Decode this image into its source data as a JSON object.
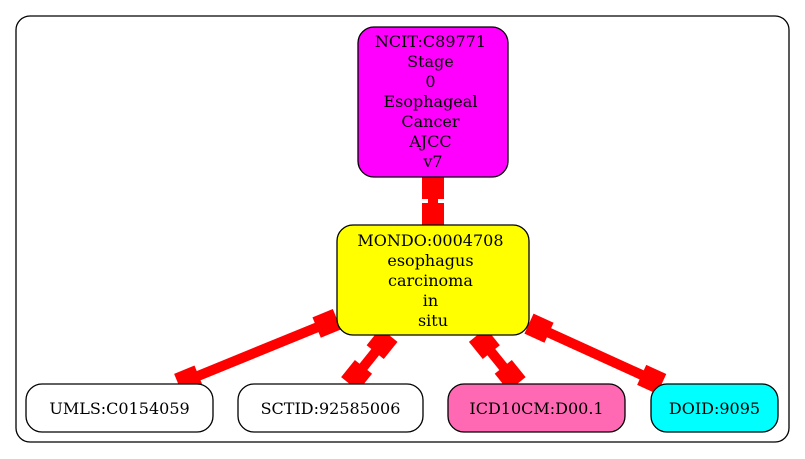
{
  "nodes": {
    "ncit": {
      "lines": [
        "NCIT:C89771",
        "Stage",
        "0",
        "Esophageal",
        "Cancer",
        "AJCC",
        "v7"
      ],
      "fill": "#ff00ff"
    },
    "mondo": {
      "lines": [
        "MONDO:0004708",
        "esophagus",
        "carcinoma",
        "in",
        "situ"
      ],
      "fill": "#ffff00"
    },
    "umls": {
      "lines": [
        "UMLS:C0154059"
      ],
      "fill": "#ffffff"
    },
    "sctid": {
      "lines": [
        "SCTID:92585006"
      ],
      "fill": "#ffffff"
    },
    "icd10cm": {
      "lines": [
        "ICD10CM:D00.1"
      ],
      "fill": "#ff69b4"
    },
    "doid": {
      "lines": [
        "DOID:9095"
      ],
      "fill": "#00ffff"
    }
  },
  "edges": [
    {
      "from": "ncit",
      "to": "mondo"
    },
    {
      "from": "mondo",
      "to": "umls"
    },
    {
      "from": "mondo",
      "to": "sctid"
    },
    {
      "from": "mondo",
      "to": "icd10cm"
    },
    {
      "from": "mondo",
      "to": "doid"
    }
  ],
  "colors": {
    "edge": "#ff0000",
    "border": "#000000",
    "background": "#ffffff"
  }
}
